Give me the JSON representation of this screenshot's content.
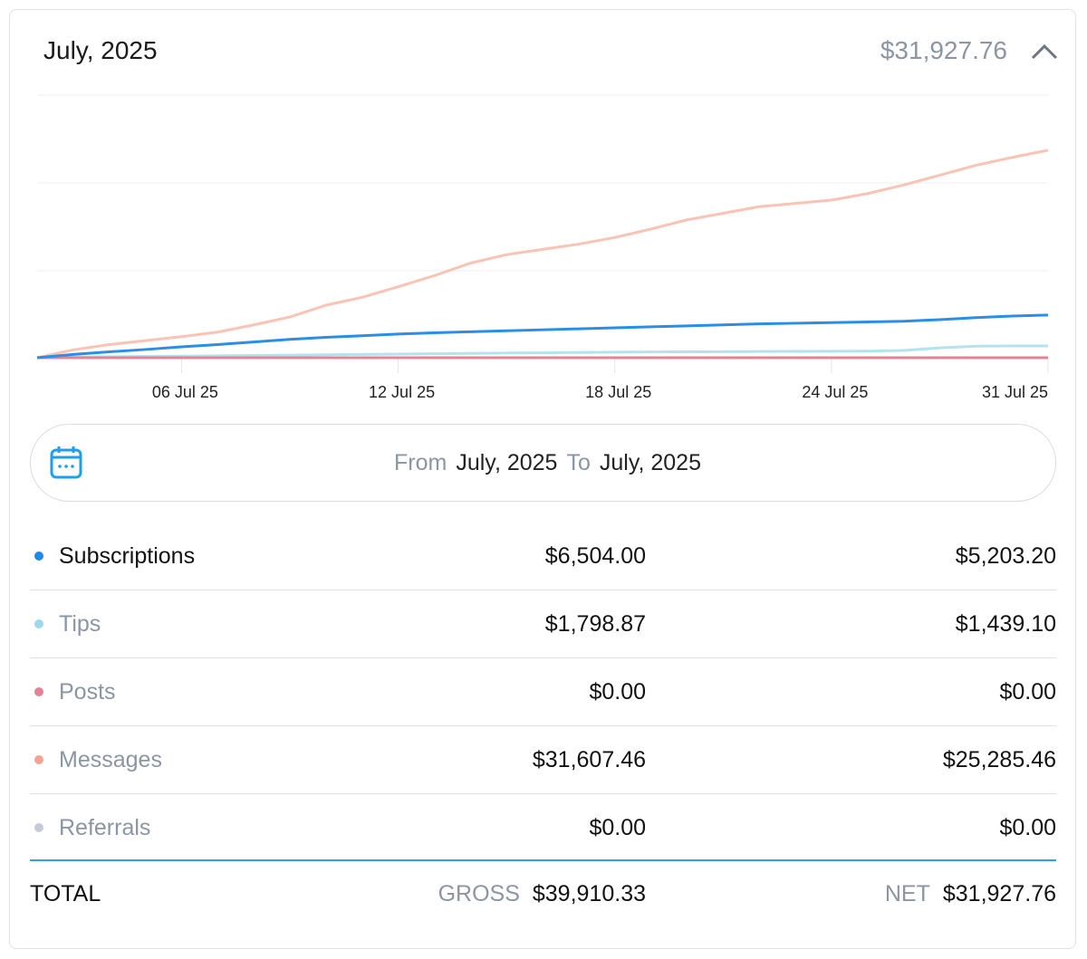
{
  "header": {
    "title": "July, 2025",
    "amount": "$31,927.76"
  },
  "chart_data": {
    "type": "line",
    "categories": [
      null,
      null,
      null,
      null,
      "06 Jul 25",
      null,
      null,
      null,
      null,
      null,
      "12 Jul 25",
      null,
      null,
      null,
      null,
      null,
      "18 Jul 25",
      null,
      null,
      null,
      null,
      null,
      "24 Jul 25",
      null,
      null,
      null,
      null,
      null,
      "31 Jul 25"
    ],
    "ylim": [
      0,
      40000
    ],
    "series": [
      {
        "color": "#fbc3b4",
        "values": [
          0,
          1200,
          2000,
          2600,
          3200,
          3900,
          5000,
          6200,
          8000,
          9200,
          10800,
          12500,
          14400,
          15700,
          16500,
          17300,
          18300,
          19600,
          21000,
          22000,
          23000,
          23500,
          24000,
          25000,
          26300,
          27800,
          29300,
          30500,
          31607.46
        ]
      },
      {
        "color": "#b3e3ee",
        "values": [
          0,
          100,
          150,
          200,
          250,
          300,
          350,
          400,
          450,
          500,
          550,
          600,
          650,
          700,
          750,
          800,
          850,
          880,
          900,
          920,
          940,
          960,
          980,
          1000,
          1100,
          1500,
          1750,
          1790,
          1798.87
        ]
      },
      {
        "color": "#e58396",
        "values": [
          0,
          0,
          0,
          0,
          0,
          0,
          0,
          0,
          0,
          0,
          0,
          0,
          0,
          0,
          0,
          0,
          0,
          0,
          0,
          0,
          0,
          0,
          0,
          0,
          0,
          0,
          0,
          0,
          0
        ]
      },
      {
        "color": "#2b8ee6",
        "values": [
          0,
          500,
          900,
          1250,
          1650,
          2000,
          2400,
          2800,
          3100,
          3350,
          3600,
          3800,
          3950,
          4100,
          4250,
          4400,
          4550,
          4700,
          4850,
          5000,
          5150,
          5250,
          5350,
          5450,
          5550,
          5800,
          6100,
          6350,
          6504
        ]
      }
    ]
  },
  "date_range": {
    "from_label": "From",
    "from": "July, 2025",
    "to_label": "To",
    "to": "July, 2025"
  },
  "table": {
    "rows": [
      {
        "label": "Subscriptions",
        "gross": "$6,504.00",
        "net": "$5,203.20",
        "color": "#1e8ae6",
        "active": true
      },
      {
        "label": "Tips",
        "gross": "$1,798.87",
        "net": "$1,439.10",
        "color": "#9fd8ec",
        "active": false
      },
      {
        "label": "Posts",
        "gross": "$0.00",
        "net": "$0.00",
        "color": "#e58396",
        "active": false
      },
      {
        "label": "Messages",
        "gross": "$31,607.46",
        "net": "$25,285.46",
        "color": "#f3a493",
        "active": false
      },
      {
        "label": "Referrals",
        "gross": "$0.00",
        "net": "$0.00",
        "color": "#c5cbd6",
        "active": false
      }
    ],
    "total": {
      "label": "TOTAL",
      "gross_label": "GROSS",
      "gross": "$39,910.33",
      "net_label": "NET",
      "net": "$31,927.76"
    }
  }
}
